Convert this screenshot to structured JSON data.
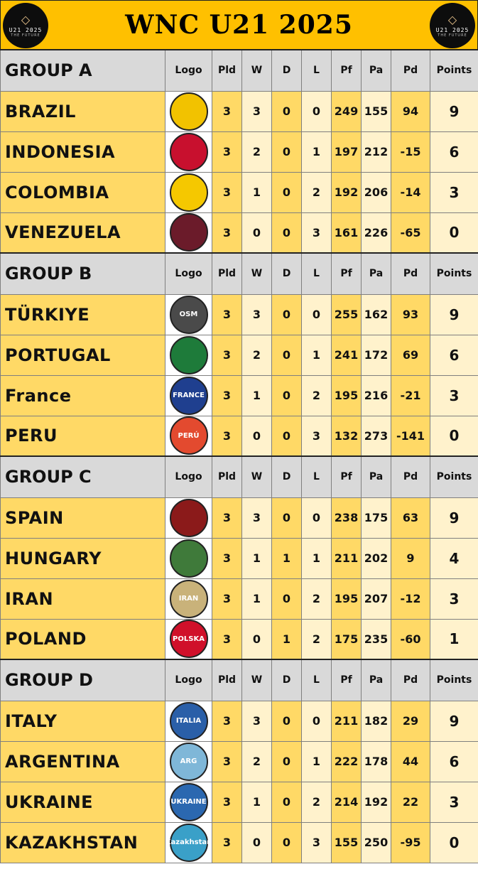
{
  "title": "WNC U21 2025",
  "emblem": {
    "text": "U21 2025",
    "subtext": "THE FUTURE",
    "gem": "◇"
  },
  "columns": [
    "Logo",
    "Pld",
    "W",
    "D",
    "L",
    "Pf",
    "Pa",
    "Pd",
    "Points"
  ],
  "groups": [
    {
      "name": "GROUP A",
      "teams": [
        {
          "name": "BRAZIL",
          "badge_text": "",
          "badge_color": "#f2c200",
          "pld": "3",
          "w": "3",
          "d": "0",
          "l": "0",
          "pf": "249",
          "pa": "155",
          "pd": "94",
          "points": "9"
        },
        {
          "name": "INDONESIA",
          "badge_text": "",
          "badge_color": "#c8102e",
          "pld": "3",
          "w": "2",
          "d": "0",
          "l": "1",
          "pf": "197",
          "pa": "212",
          "pd": "-15",
          "points": "6"
        },
        {
          "name": "COLOMBIA",
          "badge_text": "",
          "badge_color": "#f5c800",
          "pld": "3",
          "w": "1",
          "d": "0",
          "l": "2",
          "pf": "192",
          "pa": "206",
          "pd": "-14",
          "points": "3"
        },
        {
          "name": "VENEZUELA",
          "badge_text": "",
          "badge_color": "#6b1b2a",
          "pld": "3",
          "w": "0",
          "d": "0",
          "l": "3",
          "pf": "161",
          "pa": "226",
          "pd": "-65",
          "points": "0"
        }
      ]
    },
    {
      "name": "GROUP B",
      "teams": [
        {
          "name": "TÜRKIYE",
          "badge_text": "OSM",
          "badge_color": "#4a4a4a",
          "pld": "3",
          "w": "3",
          "d": "0",
          "l": "0",
          "pf": "255",
          "pa": "162",
          "pd": "93",
          "points": "9"
        },
        {
          "name": "PORTUGAL",
          "badge_text": "",
          "badge_color": "#1e7b3a",
          "pld": "3",
          "w": "2",
          "d": "0",
          "l": "1",
          "pf": "241",
          "pa": "172",
          "pd": "69",
          "points": "6"
        },
        {
          "name": "France",
          "badge_text": "FRANCE",
          "badge_color": "#1f3f8f",
          "pld": "3",
          "w": "1",
          "d": "0",
          "l": "2",
          "pf": "195",
          "pa": "216",
          "pd": "-21",
          "points": "3"
        },
        {
          "name": "PERU",
          "badge_text": "PERÚ",
          "badge_color": "#e34a2f",
          "pld": "3",
          "w": "0",
          "d": "0",
          "l": "3",
          "pf": "132",
          "pa": "273",
          "pd": "-141",
          "points": "0"
        }
      ]
    },
    {
      "name": "GROUP C",
      "teams": [
        {
          "name": "SPAIN",
          "badge_text": "",
          "badge_color": "#8b1a1a",
          "pld": "3",
          "w": "3",
          "d": "0",
          "l": "0",
          "pf": "238",
          "pa": "175",
          "pd": "63",
          "points": "9"
        },
        {
          "name": "HUNGARY",
          "badge_text": "",
          "badge_color": "#3f7a3a",
          "pld": "3",
          "w": "1",
          "d": "1",
          "l": "1",
          "pf": "211",
          "pa": "202",
          "pd": "9",
          "points": "4"
        },
        {
          "name": "IRAN",
          "badge_text": "IRAN",
          "badge_color": "#c9b27a",
          "pld": "3",
          "w": "1",
          "d": "0",
          "l": "2",
          "pf": "195",
          "pa": "207",
          "pd": "-12",
          "points": "3"
        },
        {
          "name": "POLAND",
          "badge_text": "POLSKA",
          "badge_color": "#d0102a",
          "pld": "3",
          "w": "0",
          "d": "1",
          "l": "2",
          "pf": "175",
          "pa": "235",
          "pd": "-60",
          "points": "1"
        }
      ]
    },
    {
      "name": "GROUP D",
      "teams": [
        {
          "name": "ITALY",
          "badge_text": "ITALIA",
          "badge_color": "#2a5fa8",
          "pld": "3",
          "w": "3",
          "d": "0",
          "l": "0",
          "pf": "211",
          "pa": "182",
          "pd": "29",
          "points": "9"
        },
        {
          "name": "ARGENTINA",
          "badge_text": "ARG",
          "badge_color": "#7fb7d8",
          "pld": "3",
          "w": "2",
          "d": "0",
          "l": "1",
          "pf": "222",
          "pa": "178",
          "pd": "44",
          "points": "6"
        },
        {
          "name": "UKRAINE",
          "badge_text": "UKRAINE",
          "badge_color": "#2b68b0",
          "pld": "3",
          "w": "1",
          "d": "0",
          "l": "2",
          "pf": "214",
          "pa": "192",
          "pd": "22",
          "points": "3"
        },
        {
          "name": "KAZAKHSTAN",
          "badge_text": "Kazakhstan",
          "badge_color": "#3aa0c8",
          "pld": "3",
          "w": "0",
          "d": "0",
          "l": "3",
          "pf": "155",
          "pa": "250",
          "pd": "-95",
          "points": "0"
        }
      ]
    }
  ]
}
